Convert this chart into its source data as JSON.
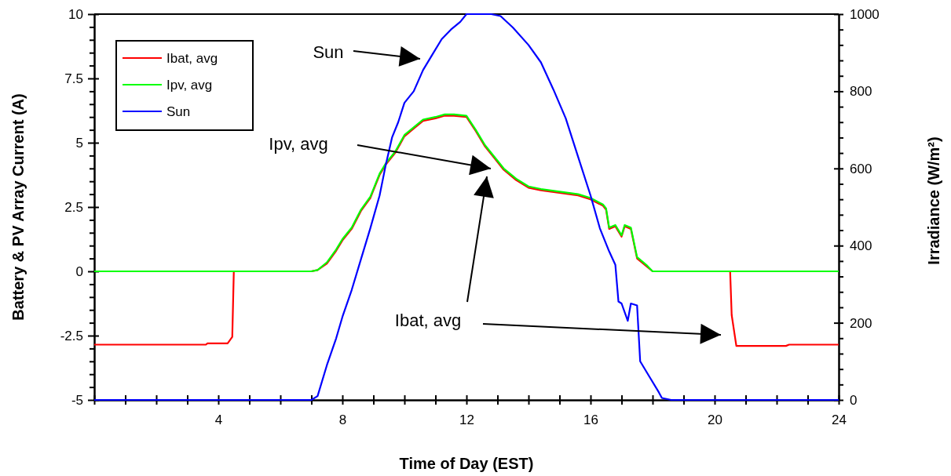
{
  "chart_data": {
    "type": "line",
    "xlabel": "Time of Day (EST)",
    "ylabel": "Battery & PV Array Current (A)",
    "y2label": "Irradiance (W/m²)",
    "xlim": [
      0,
      24
    ],
    "ylim": [
      -5,
      10
    ],
    "y2lim": [
      0,
      1000
    ],
    "xticks": [
      {
        "value": 0,
        "label": null
      },
      {
        "value": 1,
        "label": null
      },
      {
        "value": 2,
        "label": null
      },
      {
        "value": 3,
        "label": null
      },
      4,
      {
        "value": 5,
        "label": null
      },
      {
        "value": 6,
        "label": null
      },
      {
        "value": 7,
        "label": null
      },
      8,
      {
        "value": 9,
        "label": null
      },
      {
        "value": 10,
        "label": null
      },
      {
        "value": 11,
        "label": null
      },
      12,
      {
        "value": 13,
        "label": null
      },
      {
        "value": 14,
        "label": null
      },
      {
        "value": 15,
        "label": null
      },
      16,
      {
        "value": 17,
        "label": null
      },
      {
        "value": 18,
        "label": null
      },
      {
        "value": 19,
        "label": null
      },
      20,
      {
        "value": 21,
        "label": null
      },
      {
        "value": 22,
        "label": null
      },
      {
        "value": 23,
        "label": null
      },
      24
    ],
    "yticks": [
      -5,
      {
        "value": -4.5,
        "label": null
      },
      {
        "value": -4,
        "label": null
      },
      {
        "value": -3.5,
        "label": null
      },
      {
        "value": -3,
        "label": null
      },
      -2.5,
      {
        "value": -2,
        "label": null
      },
      {
        "value": -1.5,
        "label": null
      },
      {
        "value": -1,
        "label": null
      },
      {
        "value": -0.5,
        "label": null
      },
      0,
      {
        "value": 0.5,
        "label": null
      },
      {
        "value": 1,
        "label": null
      },
      {
        "value": 1.5,
        "label": null
      },
      {
        "value": 2,
        "label": null
      },
      2.5,
      {
        "value": 3,
        "label": null
      },
      {
        "value": 3.5,
        "label": null
      },
      {
        "value": 4,
        "label": null
      },
      {
        "value": 4.5,
        "label": null
      },
      5,
      {
        "value": 5.5,
        "label": null
      },
      {
        "value": 6,
        "label": null
      },
      {
        "value": 6.5,
        "label": null
      },
      {
        "value": 7,
        "label": null
      },
      7.5,
      {
        "value": 8,
        "label": null
      },
      {
        "value": 8.5,
        "label": null
      },
      {
        "value": 9,
        "label": null
      },
      {
        "value": 9.5,
        "label": null
      },
      10
    ],
    "y2ticks": [
      0,
      {
        "value": 40,
        "label": null
      },
      {
        "value": 80,
        "label": null
      },
      {
        "value": 120,
        "label": null
      },
      {
        "value": 160,
        "label": null
      },
      200,
      {
        "value": 240,
        "label": null
      },
      {
        "value": 280,
        "label": null
      },
      {
        "value": 320,
        "label": null
      },
      {
        "value": 360,
        "label": null
      },
      400,
      {
        "value": 440,
        "label": null
      },
      {
        "value": 480,
        "label": null
      },
      {
        "value": 520,
        "label": null
      },
      {
        "value": 560,
        "label": null
      },
      600,
      {
        "value": 640,
        "label": null
      },
      {
        "value": 680,
        "label": null
      },
      {
        "value": 720,
        "label": null
      },
      {
        "value": 760,
        "label": null
      },
      800,
      {
        "value": 840,
        "label": null
      },
      {
        "value": 880,
        "label": null
      },
      {
        "value": 920,
        "label": null
      },
      {
        "value": 960,
        "label": null
      },
      1000
    ],
    "grid": false,
    "legend": "top left",
    "marker": "none",
    "line_style": "solid",
    "series": [
      {
        "name": "Ibat, avg",
        "color": "#ff0000",
        "x": [
          0,
          3.6,
          3.65,
          4.3,
          4.45,
          4.5,
          7.0,
          7.2,
          7.5,
          7.8,
          8.0,
          8.3,
          8.6,
          8.9,
          9.0,
          9.2,
          9.4,
          9.7,
          10.0,
          10.3,
          10.6,
          11.0,
          11.3,
          11.6,
          12.0,
          12.3,
          12.6,
          12.9,
          13.2,
          13.6,
          14.0,
          14.4,
          15.0,
          15.6,
          16.0,
          16.4,
          16.5,
          16.6,
          16.8,
          17.0,
          17.1,
          17.3,
          17.5,
          17.8,
          18.0,
          20.5,
          20.55,
          20.7,
          22.3,
          22.4,
          24
        ],
        "values": [
          -2.85,
          -2.85,
          -2.8,
          -2.8,
          -2.55,
          0,
          0,
          0.05,
          0.3,
          0.8,
          1.2,
          1.65,
          2.35,
          2.85,
          3.15,
          3.75,
          4.15,
          4.6,
          5.25,
          5.55,
          5.85,
          5.95,
          6.05,
          6.05,
          6.0,
          5.45,
          4.85,
          4.4,
          3.95,
          3.55,
          3.25,
          3.15,
          3.05,
          2.95,
          2.8,
          2.55,
          2.4,
          1.65,
          1.75,
          1.35,
          1.75,
          1.65,
          0.5,
          0.2,
          0,
          0,
          -1.7,
          -2.9,
          -2.9,
          -2.85,
          -2.85
        ]
      },
      {
        "name": "Ipv, avg",
        "color": "#00ff00",
        "x": [
          0,
          7.0,
          7.2,
          7.5,
          7.8,
          8.0,
          8.3,
          8.6,
          8.9,
          9.0,
          9.2,
          9.4,
          9.7,
          10.0,
          10.3,
          10.6,
          11.0,
          11.3,
          11.6,
          12.0,
          12.3,
          12.6,
          12.9,
          13.2,
          13.6,
          14.0,
          14.4,
          15.0,
          15.6,
          16.0,
          16.4,
          16.5,
          16.6,
          16.8,
          17.0,
          17.1,
          17.3,
          17.5,
          17.8,
          18.0,
          24
        ],
        "values": [
          0,
          0,
          0.05,
          0.35,
          0.85,
          1.25,
          1.7,
          2.4,
          2.9,
          3.2,
          3.8,
          4.2,
          4.65,
          5.3,
          5.6,
          5.9,
          6.0,
          6.1,
          6.1,
          6.05,
          5.5,
          4.9,
          4.45,
          4.0,
          3.6,
          3.3,
          3.2,
          3.1,
          3.0,
          2.85,
          2.6,
          2.45,
          1.7,
          1.8,
          1.4,
          1.8,
          1.7,
          0.55,
          0.25,
          0,
          0
        ]
      },
      {
        "name": "Sun",
        "color": "#0000ff",
        "axis": "y2",
        "x": [
          0,
          7.0,
          7.2,
          7.5,
          7.8,
          8.0,
          8.3,
          8.6,
          8.9,
          9.2,
          9.4,
          9.6,
          9.8,
          10.0,
          10.3,
          10.6,
          10.9,
          11.2,
          11.5,
          11.8,
          12.0,
          12.3,
          12.8,
          13.1,
          13.5,
          14.0,
          14.4,
          14.8,
          15.2,
          15.6,
          16.0,
          16.3,
          16.6,
          16.8,
          16.9,
          17.0,
          17.2,
          17.3,
          17.5,
          17.6,
          17.9,
          18.2,
          18.3,
          18.6,
          24
        ],
        "values": [
          0,
          0,
          10,
          90,
          160,
          215,
          285,
          365,
          445,
          530,
          610,
          680,
          720,
          770,
          800,
          855,
          895,
          935,
          960,
          980,
          1000,
          1000,
          1000,
          995,
          965,
          920,
          875,
          805,
          730,
          630,
          530,
          445,
          385,
          350,
          255,
          250,
          205,
          250,
          245,
          100,
          60,
          20,
          5,
          0,
          0
        ]
      }
    ],
    "annotations": [
      "Sun",
      "Ipv, avg",
      "Ibat, avg"
    ]
  }
}
